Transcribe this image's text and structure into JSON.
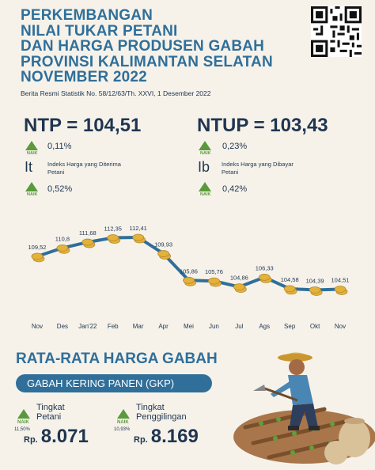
{
  "header": {
    "title_lines": [
      "PERKEMBANGAN",
      "NILAI TUKAR PETANI",
      "DAN HARGA PRODUSEN GABAH",
      "PROVINSI KALIMANTAN SELATAN",
      "NOVEMBER 2022"
    ],
    "subtitle": "Berita Resmi Statistik No. 58/12/63/Th. XXVI, 1 Desember 2022"
  },
  "ntp": {
    "label": "NTP = 104,51",
    "change": "0,11%",
    "naik": "NAIK"
  },
  "ntup": {
    "label": "NTUP = 103,43",
    "change": "0,23%",
    "naik": "NAIK"
  },
  "it": {
    "letter": "It",
    "desc": "Indeks Harga yang Diterima Petani",
    "change": "0,52%",
    "naik": "NAIK"
  },
  "ib": {
    "letter": "Ib",
    "desc": "Indeks Harga yang Dibayar Petani",
    "change": "0,42%",
    "naik": "NAIK"
  },
  "colors": {
    "title": "#2f6f9a",
    "text": "#1f3550",
    "up": "#5a9a3c",
    "line": "#2f6f9a",
    "coin": "#e2b23a"
  },
  "chart_data": {
    "type": "line",
    "categories": [
      "Nov",
      "Des",
      "Jan'22",
      "Feb",
      "Mar",
      "Apr",
      "Mei",
      "Jun",
      "Jul",
      "Ags",
      "Sep",
      "Okt",
      "Nov"
    ],
    "values": [
      109.52,
      110.8,
      111.68,
      112.35,
      112.41,
      109.93,
      105.86,
      105.76,
      104.86,
      106.33,
      104.58,
      104.39,
      104.51
    ],
    "value_labels": [
      "109,52",
      "110,8",
      "111,68",
      "112,35",
      "112,41",
      "109,93",
      "105,86",
      "105,76",
      "104,86",
      "106,33",
      "104,58",
      "104,39",
      "104,51"
    ],
    "ylim": [
      103,
      113.5
    ]
  },
  "gabah": {
    "section_title": "RATA-RATA HARGA GABAH",
    "pill": "GABAH KERING PANEN (GKP)",
    "petani": {
      "label_line1": "Tingkat",
      "label_line2": "Petani",
      "naik": "NAIK",
      "change": "11,50%",
      "currency": "Rp.",
      "price": "8.071"
    },
    "penggilingan": {
      "label_line1": "Tingkat",
      "label_line2": "Penggilingan",
      "naik": "NAIK",
      "change": "10,93%",
      "currency": "Rp.",
      "price": "8.169"
    }
  }
}
